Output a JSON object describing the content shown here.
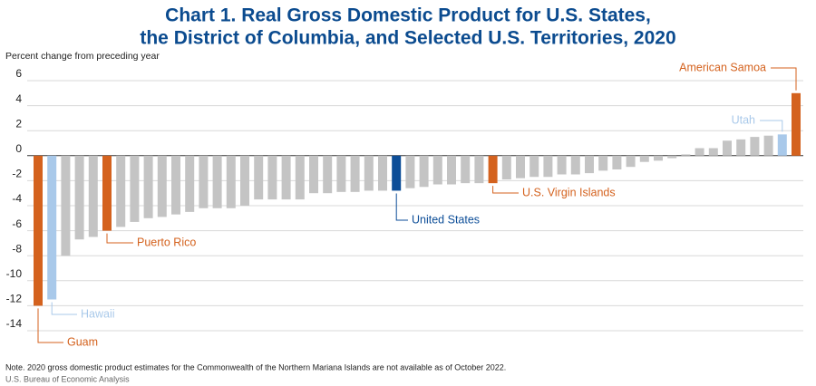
{
  "chart_data": {
    "type": "bar",
    "title": [
      "Chart 1. Real Gross Domestic Product for U.S. States,",
      "the District of Columbia, and Selected U.S. Territories, 2020"
    ],
    "y_axis_label": "Percent change from preceding year",
    "note": "Note. 2020 gross domestic product estimates for the Commonwealth of the Northern Mariana Islands are not available as of October 2022.",
    "source": "U.S. Bureau of Economic Analysis",
    "categories": [
      "Guam",
      "Hawaii",
      null,
      null,
      null,
      "Puerto Rico",
      null,
      null,
      null,
      null,
      null,
      null,
      null,
      null,
      null,
      null,
      null,
      null,
      null,
      null,
      null,
      null,
      null,
      null,
      null,
      null,
      "United States",
      null,
      null,
      null,
      null,
      null,
      null,
      "U.S. Virgin Islands",
      null,
      null,
      null,
      null,
      null,
      null,
      null,
      null,
      null,
      null,
      null,
      null,
      null,
      null,
      null,
      null,
      null,
      null,
      null,
      null,
      "Utah",
      "American Samoa"
    ],
    "values": [
      -12.0,
      -11.5,
      -8.0,
      -6.7,
      -6.5,
      -6.0,
      -5.7,
      -5.3,
      -5.0,
      -4.9,
      -4.7,
      -4.5,
      -4.2,
      -4.2,
      -4.2,
      -4.0,
      -3.5,
      -3.5,
      -3.5,
      -3.5,
      -3.0,
      -3.0,
      -2.9,
      -2.9,
      -2.8,
      -2.8,
      -2.8,
      -2.6,
      -2.5,
      -2.3,
      -2.3,
      -2.2,
      -2.2,
      -2.2,
      -1.9,
      -1.8,
      -1.7,
      -1.7,
      -1.5,
      -1.5,
      -1.4,
      -1.2,
      -1.1,
      -0.9,
      -0.5,
      -0.4,
      -0.2,
      0.1,
      0.6,
      0.6,
      1.2,
      1.3,
      1.5,
      1.6,
      1.7,
      5.0
    ],
    "color": "#c4c4c4",
    "highlight_colors": {
      "Guam": "#d4621e",
      "Hawaii": "#a9c9ea",
      "Puerto Rico": "#d4621e",
      "United States": "#0d4e98",
      "U.S. Virgin Islands": "#d4621e",
      "Utah": "#a9c9ea",
      "American Samoa": "#d4621e"
    },
    "ylim": [
      -14,
      6
    ],
    "yticks": [
      -14,
      -12,
      -10,
      -8,
      -6,
      -4,
      -2,
      0,
      2,
      4,
      6
    ],
    "grid": true
  }
}
